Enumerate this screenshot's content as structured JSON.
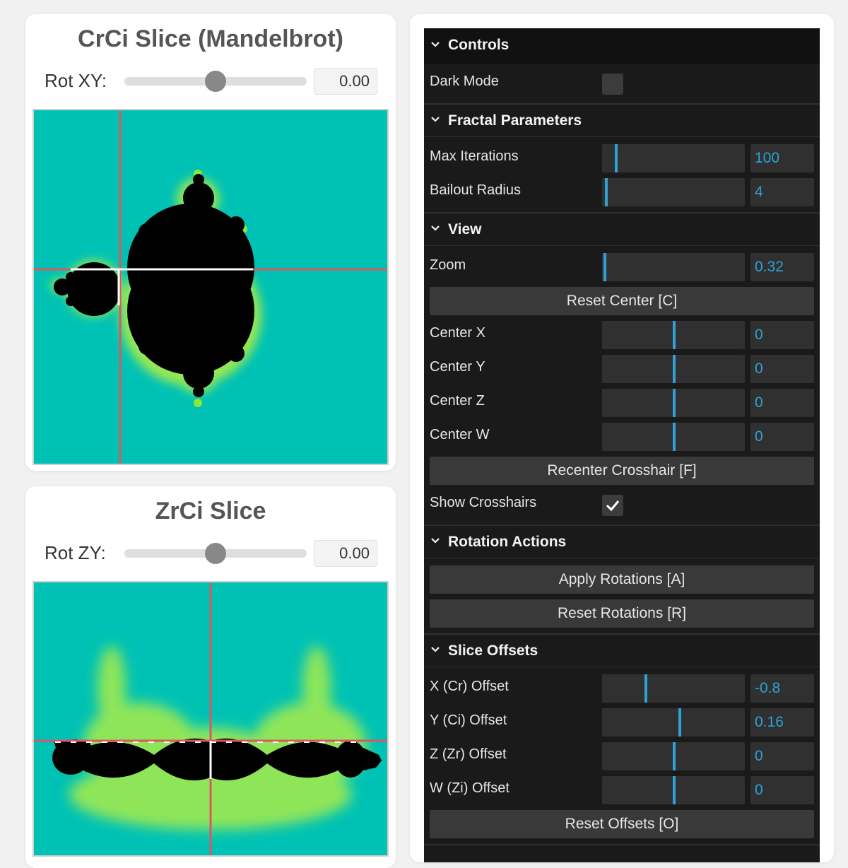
{
  "crci": {
    "title": "CrCi Slice (Mandelbrot)",
    "rot_label": "Rot XY:",
    "rot_value": "0.00",
    "slider_fraction": 0.5
  },
  "zrci": {
    "title": "ZrCi Slice",
    "rot_label": "Rot ZY:",
    "rot_value": "0.00",
    "slider_fraction": 0.5
  },
  "gui": {
    "root_label": "Controls",
    "dark_mode": {
      "label": "Dark Mode",
      "checked": false
    },
    "fractal_params": {
      "label": "Fractal Parameters",
      "max_iterations": {
        "label": "Max Iterations",
        "value": "100"
      },
      "bailout_radius": {
        "label": "Bailout Radius",
        "value": "4"
      }
    },
    "view": {
      "label": "View",
      "zoom": {
        "label": "Zoom",
        "value": "0.32"
      },
      "reset_center": "Reset Center [C]",
      "center_x": {
        "label": "Center X",
        "value": "0"
      },
      "center_y": {
        "label": "Center Y",
        "value": "0"
      },
      "center_z": {
        "label": "Center Z",
        "value": "0"
      },
      "center_w": {
        "label": "Center W",
        "value": "0"
      },
      "recenter_crosshair": "Recenter Crosshair [F]",
      "show_crosshairs": {
        "label": "Show Crosshairs",
        "checked": true
      }
    },
    "rotation_actions": {
      "label": "Rotation Actions",
      "apply": "Apply Rotations [A]",
      "reset": "Reset Rotations [R]"
    },
    "slice_offsets": {
      "label": "Slice Offsets",
      "x": {
        "label": "X (Cr) Offset",
        "value": "-0.8"
      },
      "y": {
        "label": "Y (Ci) Offset",
        "value": "0.16"
      },
      "z": {
        "label": "Z (Zr) Offset",
        "value": "0"
      },
      "w": {
        "label": "W (Zi) Offset",
        "value": "0"
      },
      "reset": "Reset Offsets [O]"
    }
  },
  "colors": {
    "background": "#00c2b4",
    "set": "#000000",
    "crosshair": "#e0555f",
    "accent": "#2fa1d6"
  }
}
